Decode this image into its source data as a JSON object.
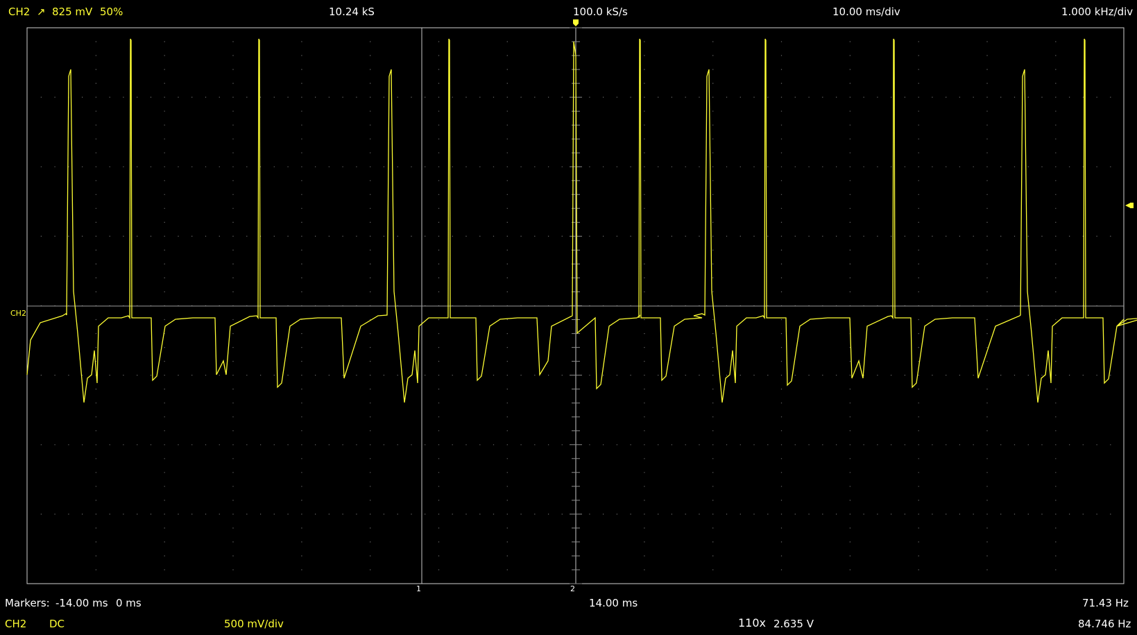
{
  "header": {
    "trigger_channel": "CH2",
    "trigger_edge_icon": "rising-edge-arrow",
    "trigger_level": "825 mV",
    "trigger_position": "50%",
    "sample_count": "10.24 kS",
    "sample_rate": "100.0 kS/s",
    "timebase": "10.00 ms/div",
    "freq_scale": "1.000 kHz/div"
  },
  "channel_marker": "CH2",
  "markers": {
    "label": "Markers:",
    "m1": "-14.00 ms",
    "m2": "0 ms",
    "m1_tag": "1",
    "m2_tag": "2",
    "delta": "14.00 ms",
    "delta_freq": "71.43 Hz"
  },
  "footer": {
    "channel": "CH2",
    "coupling": "DC",
    "vscale": "500 mV/div",
    "probe": "110x",
    "measurement": "2.635 V",
    "frequency": "84.746 Hz"
  },
  "colors": {
    "trace": "#ffff33",
    "grid": "#707070",
    "frame": "#d0d0d0",
    "background": "#000000"
  }
}
